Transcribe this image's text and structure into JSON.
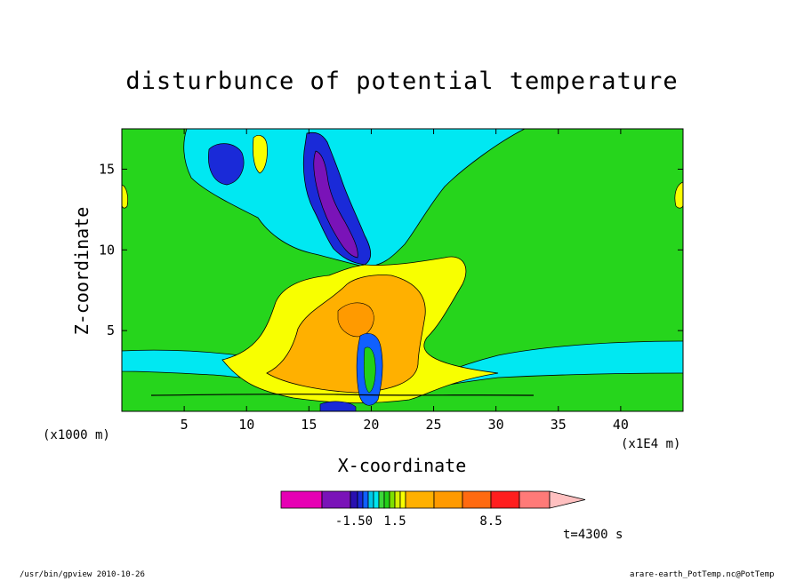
{
  "chart_data": {
    "type": "heatmap",
    "title": "disturbunce of potential temperature",
    "xlabel": "X-coordinate",
    "ylabel": "Z-coordinate",
    "x_unit_label": "(x1E4 m)",
    "y_unit_label": "(x1000 m)",
    "x_ticks": [
      "5",
      "10",
      "15",
      "20",
      "25",
      "30",
      "35",
      "40"
    ],
    "y_ticks": [
      "5",
      "10",
      "15"
    ],
    "xlim": [
      0,
      45
    ],
    "ylim": [
      0,
      17.5
    ],
    "colorbar": {
      "labels": [
        "-1.50",
        "1.5",
        "8.5"
      ],
      "colors": [
        "#e600b4",
        "#7a13b8",
        "#2a10b0",
        "#1a2ad8",
        "#1060ff",
        "#00c8e8",
        "#00e6f0",
        "#3cd838",
        "#22d018",
        "#7ee000",
        "#d8f000",
        "#f8ff00",
        "#ffb000",
        "#ff9a00",
        "#ff6a10",
        "#ff1e1e",
        "#ff7a78",
        "#ffc0c0"
      ]
    }
  },
  "annotations": {
    "time": "t=4300 s",
    "footer_left": "/usr/bin/gpview   2010-10-26",
    "footer_right": "arare-earth_PotTemp.nc@PotTemp"
  }
}
